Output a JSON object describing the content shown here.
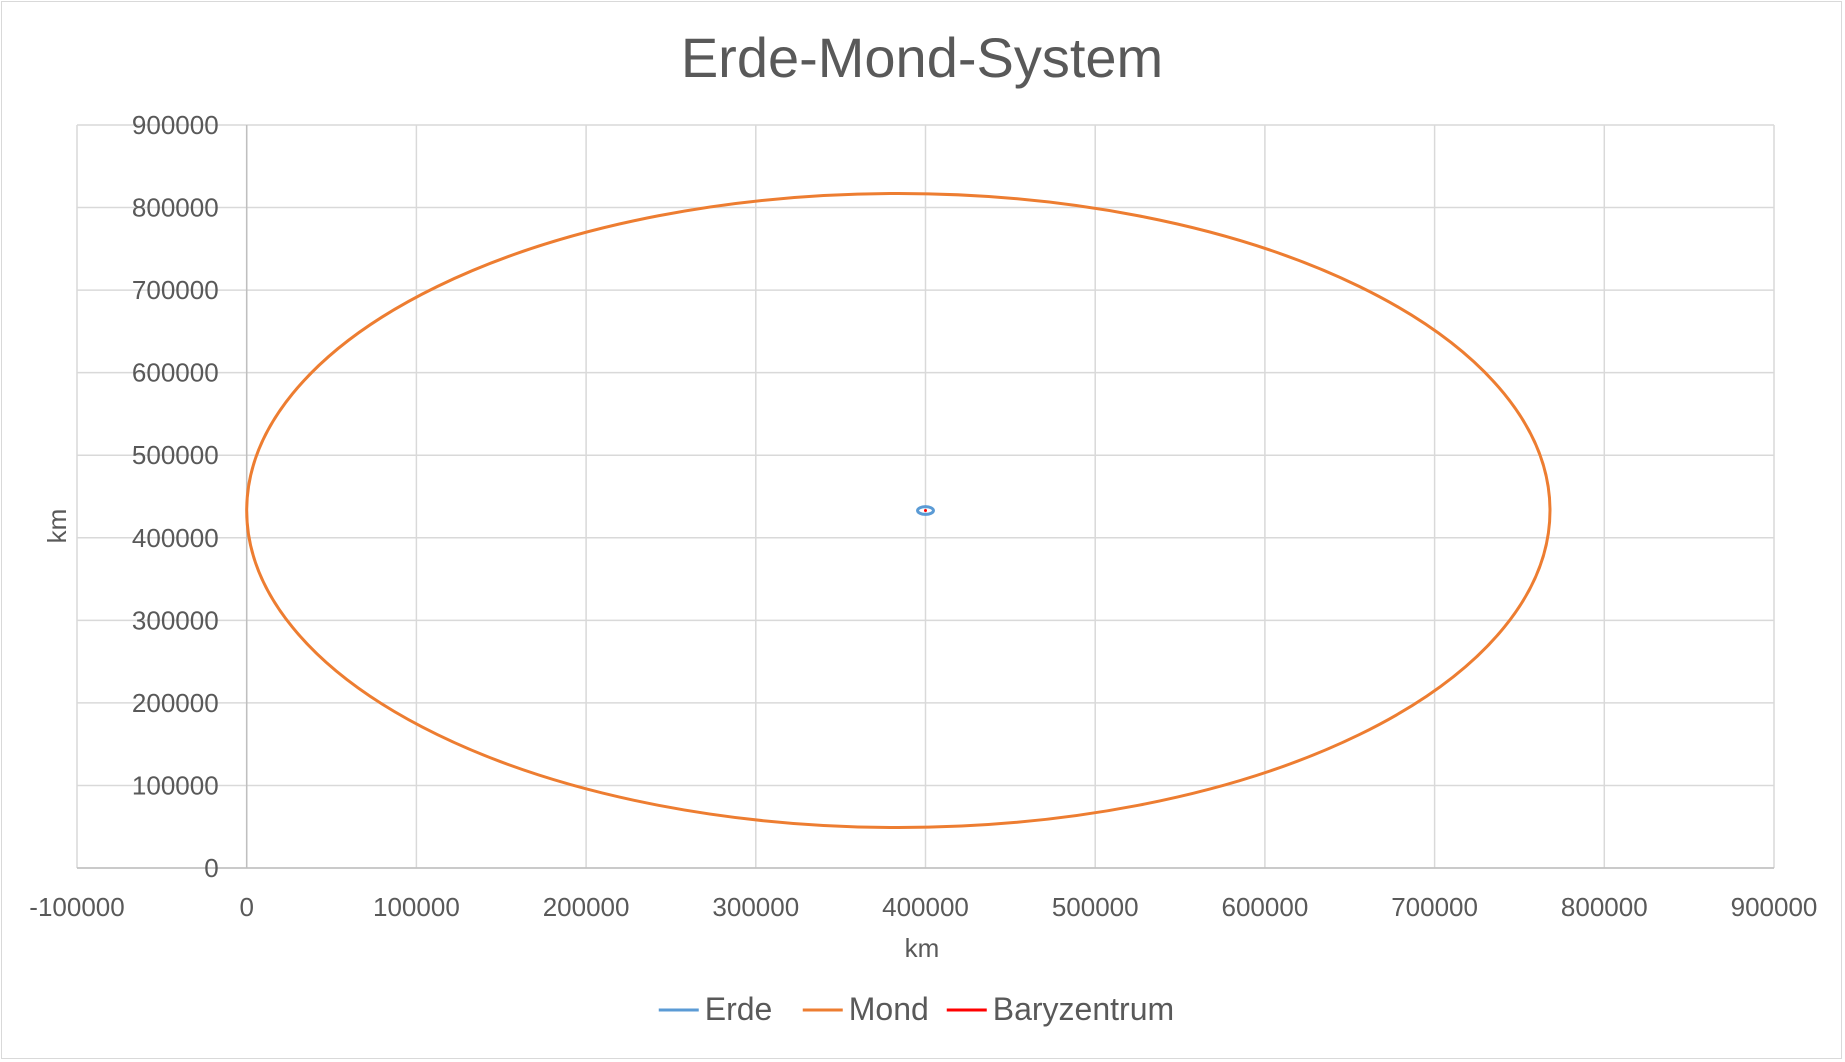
{
  "chart_data": {
    "type": "scatter",
    "title": "Erde-Mond-System",
    "xlabel": "km",
    "ylabel": "km",
    "xlim": [
      -100000,
      900000
    ],
    "ylim": [
      0,
      900000
    ],
    "x_ticks": [
      -100000,
      0,
      100000,
      200000,
      300000,
      400000,
      500000,
      600000,
      700000,
      800000,
      900000
    ],
    "y_ticks": [
      0,
      100000,
      200000,
      300000,
      400000,
      500000,
      600000,
      700000,
      800000,
      900000
    ],
    "x_tick_labels": [
      "-100000",
      "0",
      "100000",
      "200000",
      "300000",
      "400000",
      "500000",
      "600000",
      "700000",
      "800000",
      "900000"
    ],
    "y_tick_labels": [
      "0",
      "100000",
      "200000",
      "300000",
      "400000",
      "500000",
      "600000",
      "700000",
      "800000",
      "900000"
    ],
    "grid": true,
    "legend_position": "bottom",
    "series": [
      {
        "name": "Erde",
        "color": "#5b9bd5",
        "shape": "ellipse",
        "center": [
          400000,
          433000
        ],
        "radius_x": 4700,
        "radius_y": 4700
      },
      {
        "name": "Mond",
        "color": "#ed7d31",
        "shape": "ellipse",
        "center": [
          384000,
          433000
        ],
        "radius_x": 384000,
        "radius_y": 384000
      },
      {
        "name": "Baryzentrum",
        "color": "#ff0000",
        "shape": "point",
        "center": [
          400000,
          433000
        ]
      }
    ]
  }
}
